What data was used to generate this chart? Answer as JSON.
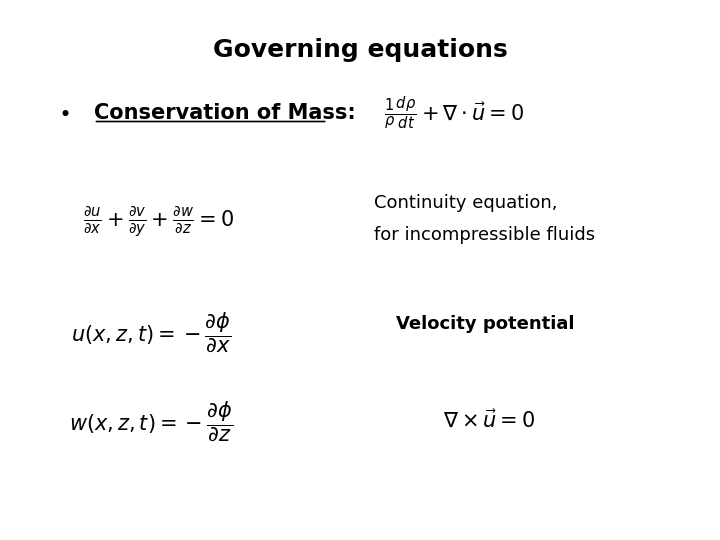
{
  "title": "Governing equations",
  "title_fontsize": 18,
  "background_color": "#ffffff",
  "text_color": "#000000",
  "bullet_label": "Conservation of Mass:",
  "eq2_note1": "Continuity equation,",
  "eq2_note2": "for incompressible fluids",
  "eq3_note": "Velocity potential",
  "figsize": [
    7.2,
    5.4
  ],
  "dpi": 100
}
